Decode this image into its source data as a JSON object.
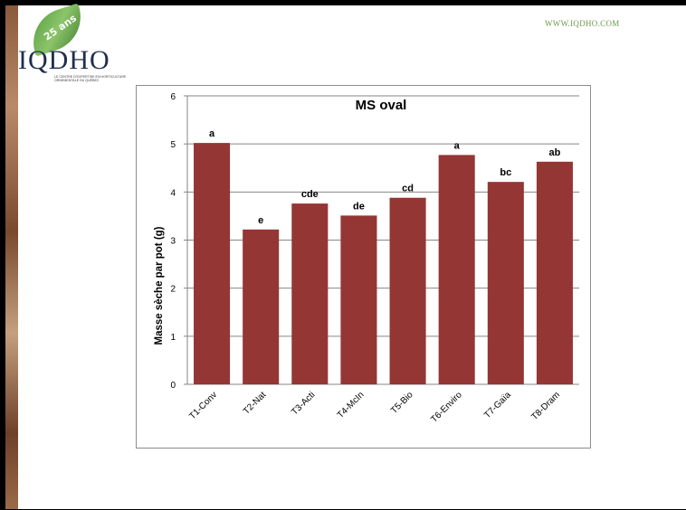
{
  "header": {
    "logo_badge": "25 ans",
    "logo_name": "IQDHO",
    "logo_tagline": "Le centre d'expertise en horticulture ornementale du Québec",
    "website": "WWW.IQDHO.COM"
  },
  "colors": {
    "bar": "#943634",
    "grid": "#868686",
    "background": "#ffffff",
    "leaf": "#4f9a3a"
  },
  "chart_data": {
    "type": "bar",
    "title": "MS oval",
    "xlabel": "",
    "ylabel": "Masse sèche par pot (g)",
    "ylim": [
      0,
      6
    ],
    "yticks": [
      "0",
      "1",
      "2",
      "3",
      "4",
      "5",
      "6"
    ],
    "grid": true,
    "categories": [
      "T1-Conv",
      "T2-Nat",
      "T3-Acti",
      "T4-McIn",
      "T5-Bio",
      "T6-Enviro",
      "T7-Gaïa",
      "T8-Dram"
    ],
    "values": [
      5.02,
      3.22,
      3.76,
      3.51,
      3.88,
      4.77,
      4.21,
      4.63
    ],
    "data_labels": [
      "a",
      "e",
      "cde",
      "de",
      "cd",
      "a",
      "bc",
      "ab"
    ]
  }
}
